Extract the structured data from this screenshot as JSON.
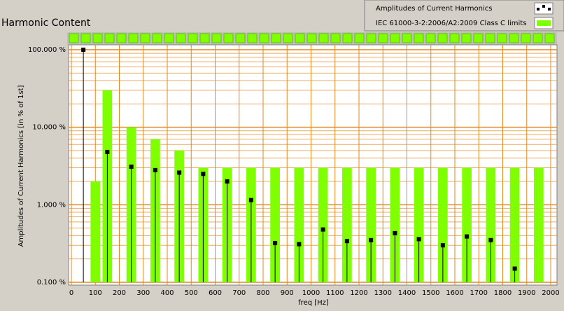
{
  "chart_data": {
    "type": "bar",
    "title": "Harmonic Content",
    "xlabel": "freq [Hz]",
    "ylabel": "Amplitudes of Current Harmonics [in % of 1st]",
    "xlim": [
      0,
      2000
    ],
    "xticks": [
      0,
      100,
      200,
      300,
      400,
      500,
      600,
      700,
      800,
      900,
      1000,
      1100,
      1200,
      1300,
      1400,
      1500,
      1600,
      1700,
      1800,
      1900,
      2000
    ],
    "ylim": [
      0.1,
      100
    ],
    "log_y": true,
    "yticks": [
      {
        "value": 0.1,
        "label": "0.100 %"
      },
      {
        "value": 1,
        "label": "1.000 %"
      },
      {
        "value": 10,
        "label": "10.000 %"
      },
      {
        "value": 100,
        "label": "100.000 %"
      }
    ],
    "grid": true,
    "grid_color": "#e0891e",
    "legend": "top-right",
    "series": [
      {
        "name": "Amplitudes of Current Harmonics",
        "type": "stem",
        "color": "#000000",
        "x": [
          50,
          150,
          250,
          350,
          450,
          550,
          650,
          750,
          850,
          950,
          1050,
          1150,
          1250,
          1350,
          1450,
          1550,
          1650,
          1750,
          1850
        ],
        "values": [
          100,
          4.8,
          3.1,
          2.8,
          2.6,
          2.5,
          2.0,
          1.15,
          0.32,
          0.31,
          0.48,
          0.34,
          0.35,
          0.43,
          0.36,
          0.3,
          0.39,
          0.35,
          0.15
        ]
      },
      {
        "name": "IEC 61000-3-2:2006/A2:2009 Class C limits",
        "type": "bar",
        "color": "#80ff00",
        "x": [
          100,
          150,
          250,
          350,
          450,
          550,
          650,
          750,
          850,
          950,
          1050,
          1150,
          1250,
          1350,
          1450,
          1550,
          1650,
          1750,
          1850,
          1950
        ],
        "values": [
          2,
          30,
          10,
          7,
          5,
          3,
          3,
          3,
          3,
          3,
          3,
          3,
          3,
          3,
          3,
          3,
          3,
          3,
          3,
          3
        ]
      }
    ]
  }
}
